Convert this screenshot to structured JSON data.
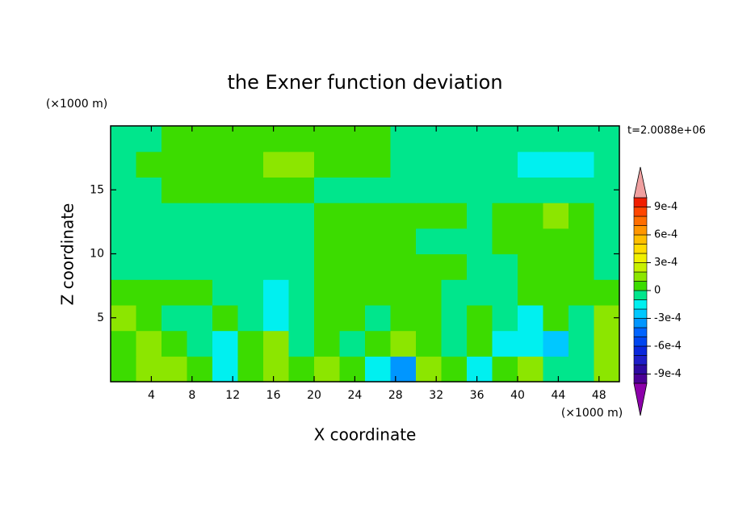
{
  "chart_data": {
    "type": "contour",
    "title": "the Exner function deviation",
    "xlabel": "X coordinate",
    "ylabel": "Z coordinate",
    "x_unit": "(×1000 m)",
    "y_unit": "(×1000 m)",
    "annotation": "t=2.0088e+06",
    "xlim": [
      0,
      50
    ],
    "ylim": [
      0,
      20
    ],
    "xticks": [
      4,
      8,
      12,
      16,
      20,
      24,
      28,
      32,
      36,
      40,
      44,
      48
    ],
    "yticks": [
      5,
      10,
      15
    ],
    "x": [
      1.25,
      3.75,
      6.25,
      8.75,
      11.25,
      13.75,
      16.25,
      18.75,
      21.25,
      23.75,
      26.25,
      28.75,
      31.25,
      33.75,
      36.25,
      38.75,
      41.25,
      43.75,
      46.25,
      48.75
    ],
    "y": [
      1,
      3,
      5,
      7,
      9,
      11,
      13,
      15,
      17,
      19
    ],
    "z": [
      [
        5e-05,
        0.00015,
        0.00015,
        5e-05,
        -0.00015,
        5e-05,
        0.00015,
        5e-05,
        0.00015,
        5e-05,
        -0.00015,
        -0.00035,
        0.00015,
        5e-05,
        -0.00015,
        5e-05,
        0.00015,
        -5e-05,
        -5e-05,
        0.00015
      ],
      [
        5e-05,
        0.00015,
        5e-05,
        -5e-05,
        -0.00015,
        5e-05,
        0.00015,
        -5e-05,
        5e-05,
        -5e-05,
        5e-05,
        0.00015,
        5e-05,
        -5e-05,
        5e-05,
        -0.00015,
        -0.00015,
        -0.00025,
        -5e-05,
        0.00015
      ],
      [
        0.00015,
        5e-05,
        -5e-05,
        -5e-05,
        5e-05,
        -5e-05,
        -0.00015,
        -5e-05,
        5e-05,
        5e-05,
        -5e-05,
        5e-05,
        5e-05,
        -5e-05,
        5e-05,
        -5e-05,
        -0.00015,
        5e-05,
        -5e-05,
        0.00015
      ],
      [
        5e-05,
        5e-05,
        5e-05,
        5e-05,
        -5e-05,
        -5e-05,
        -0.00015,
        -5e-05,
        5e-05,
        5e-05,
        5e-05,
        5e-05,
        5e-05,
        -5e-05,
        -5e-05,
        -5e-05,
        5e-05,
        5e-05,
        5e-05,
        5e-05
      ],
      [
        -5e-05,
        -5e-05,
        -5e-05,
        -5e-05,
        -5e-05,
        -5e-05,
        -5e-05,
        -5e-05,
        5e-05,
        5e-05,
        5e-05,
        5e-05,
        5e-05,
        5e-05,
        -5e-05,
        -5e-05,
        5e-05,
        5e-05,
        5e-05,
        -5e-05
      ],
      [
        -5e-05,
        -5e-05,
        -5e-05,
        -5e-05,
        -5e-05,
        -5e-05,
        -5e-05,
        -5e-05,
        5e-05,
        5e-05,
        5e-05,
        5e-05,
        -5e-05,
        -5e-05,
        -5e-05,
        5e-05,
        5e-05,
        5e-05,
        5e-05,
        -5e-05
      ],
      [
        -5e-05,
        -5e-05,
        -5e-05,
        -5e-05,
        -5e-05,
        -5e-05,
        -5e-05,
        -5e-05,
        5e-05,
        5e-05,
        5e-05,
        5e-05,
        5e-05,
        5e-05,
        -5e-05,
        5e-05,
        5e-05,
        0.00015,
        5e-05,
        -5e-05
      ],
      [
        -5e-05,
        -5e-05,
        5e-05,
        5e-05,
        5e-05,
        5e-05,
        5e-05,
        5e-05,
        -5e-05,
        -5e-05,
        -5e-05,
        -5e-05,
        -5e-05,
        -5e-05,
        -5e-05,
        -5e-05,
        -5e-05,
        -5e-05,
        -5e-05,
        -5e-05
      ],
      [
        -5e-05,
        5e-05,
        5e-05,
        5e-05,
        5e-05,
        5e-05,
        0.00015,
        0.00015,
        5e-05,
        5e-05,
        5e-05,
        -5e-05,
        -5e-05,
        -5e-05,
        -5e-05,
        -5e-05,
        -0.00015,
        -0.00015,
        -0.00015,
        -5e-05
      ],
      [
        -5e-05,
        -5e-05,
        5e-05,
        5e-05,
        5e-05,
        5e-05,
        5e-05,
        5e-05,
        5e-05,
        5e-05,
        5e-05,
        -5e-05,
        -5e-05,
        -5e-05,
        -5e-05,
        -5e-05,
        -5e-05,
        -5e-05,
        -5e-05,
        -5e-05
      ]
    ],
    "levels": [
      -0.001,
      -0.0009,
      -0.0008,
      -0.0007,
      -0.0006,
      -0.0005,
      -0.0004,
      -0.0003,
      -0.0002,
      -0.0001,
      0,
      0.0001,
      0.0002,
      0.0003,
      0.0004,
      0.0005,
      0.0006,
      0.0007,
      0.0008,
      0.0009,
      0.001
    ],
    "colors": [
      "#8c00aa",
      "#4b0096",
      "#2d0aa0",
      "#1e1ec8",
      "#0a28dc",
      "#0046f0",
      "#0064ff",
      "#0096ff",
      "#00c8ff",
      "#00f0f0",
      "#00e68c",
      "#3cdc00",
      "#8ce600",
      "#c8f000",
      "#f0f000",
      "#ffdc00",
      "#ffbe00",
      "#ff9600",
      "#ff6e00",
      "#ff4600",
      "#f01e00",
      "#f0a0a0"
    ],
    "colorbar_ticks": [
      {
        "value": 0.0009,
        "label": "9e-4"
      },
      {
        "value": 0.0006,
        "label": "6e-4"
      },
      {
        "value": 0.0003,
        "label": "3e-4"
      },
      0,
      {
        "value": -0.0003,
        "label": "-3e-4"
      },
      {
        "value": -0.0006,
        "label": "-6e-4"
      },
      {
        "value": -0.0009,
        "label": "-9e-4"
      }
    ]
  }
}
